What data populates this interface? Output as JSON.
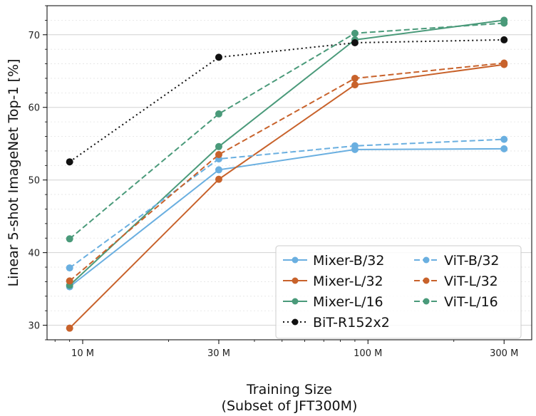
{
  "chart_data": {
    "type": "line",
    "title": "",
    "xlabel_lines": [
      "Training Size",
      "(Subset of JFT300M)"
    ],
    "ylabel": "Linear 5-shot ImageNet Top-1 [%]",
    "x_scale": "log",
    "xlim": [
      7.5,
      375
    ],
    "ylim": [
      28,
      74
    ],
    "x_ticks": [
      10,
      30,
      100,
      300
    ],
    "x_tick_labels": [
      "10 M",
      "30 M",
      "100 M",
      "300 M"
    ],
    "y_ticks": [
      30,
      40,
      50,
      60,
      70
    ],
    "y_tick_labels": [
      "30",
      "40",
      "50",
      "60",
      "70"
    ],
    "grid": true,
    "legend_position": "lower-right",
    "x": [
      9.0,
      30,
      90,
      300
    ],
    "series": [
      {
        "name": "Mixer-B/32",
        "color": "#6aafe0",
        "style": "solid",
        "values": [
          35.3,
          51.4,
          54.2,
          54.3
        ]
      },
      {
        "name": "Mixer-L/32",
        "color": "#c8622b",
        "style": "solid",
        "values": [
          29.6,
          50.1,
          63.1,
          65.9
        ]
      },
      {
        "name": "Mixer-L/16",
        "color": "#4a9a7a",
        "style": "solid",
        "values": [
          35.5,
          54.6,
          69.3,
          72.0
        ]
      },
      {
        "name": "BiT-R152x2",
        "color": "#111111",
        "style": "dotted",
        "values": [
          52.5,
          66.9,
          68.9,
          69.3
        ]
      },
      {
        "name": "ViT-B/32",
        "color": "#6aafe0",
        "style": "dashed",
        "values": [
          37.9,
          52.9,
          54.7,
          55.6
        ]
      },
      {
        "name": "ViT-L/32",
        "color": "#c8622b",
        "style": "dashed",
        "values": [
          36.1,
          53.5,
          64.0,
          66.1
        ]
      },
      {
        "name": "ViT-L/16",
        "color": "#4a9a7a",
        "style": "dashed",
        "values": [
          41.9,
          59.1,
          70.2,
          71.6
        ]
      }
    ],
    "legend_order": [
      0,
      4,
      1,
      5,
      2,
      6,
      3
    ]
  }
}
